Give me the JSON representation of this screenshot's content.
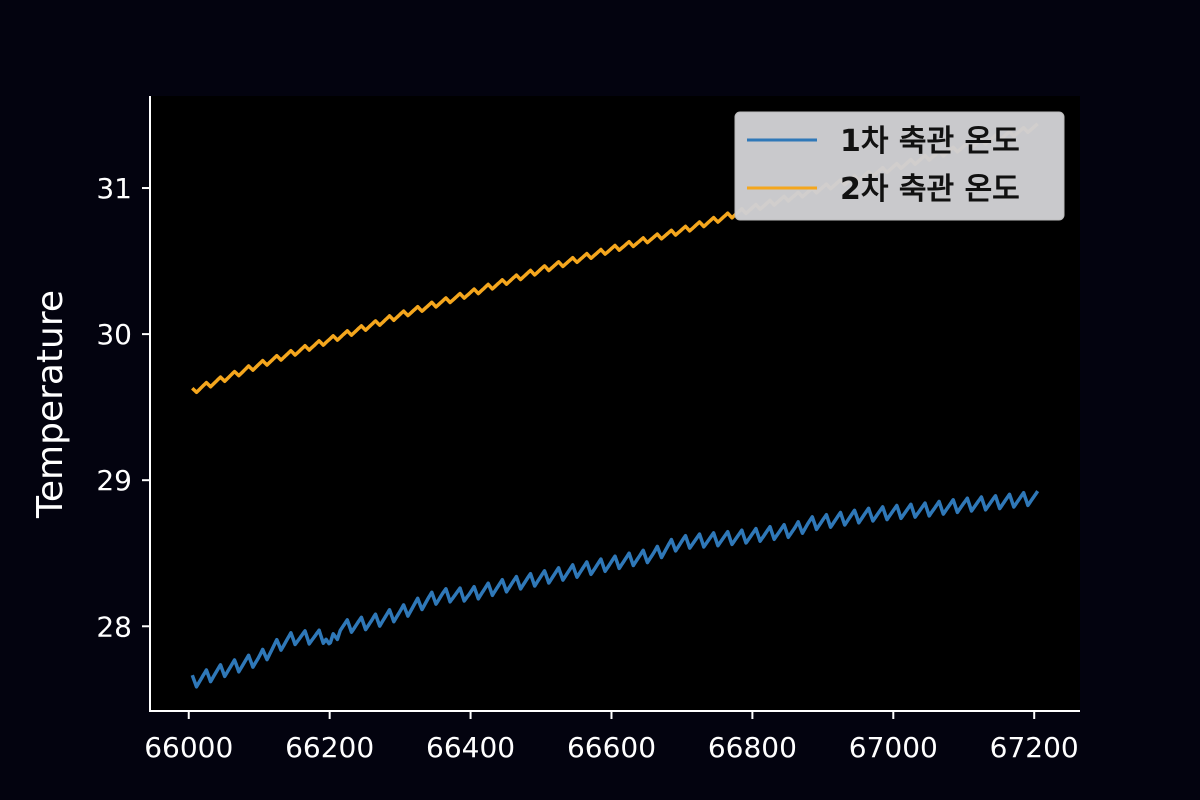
{
  "chart_data": {
    "type": "line",
    "title": "",
    "xlabel": "",
    "ylabel": "Temperature",
    "xlim": [
      65945,
      67265
    ],
    "ylim": [
      27.42,
      31.63
    ],
    "xticks": [
      66000,
      66200,
      66400,
      66600,
      66800,
      67000,
      67200
    ],
    "yticks": [
      28,
      29,
      30,
      31
    ],
    "grid": false,
    "legend_position": "top-right",
    "colors": {
      "background": "#03030f",
      "axes": "#ffffff",
      "legend_bg": "#cfcfd3"
    },
    "series": [
      {
        "name": "1차 축관 온도",
        "color": "#2f78b8",
        "oscillation": 0.09,
        "period": 20,
        "x": [
          66005,
          66050,
          66100,
          66130,
          66150,
          66195,
          66200,
          66215,
          66260,
          66300,
          66340,
          66360,
          66400,
          66450,
          66500,
          66550,
          66600,
          66660,
          66690,
          66710,
          66760,
          66800,
          66860,
          66880,
          66920,
          66960,
          67000,
          67050,
          67100,
          67150,
          67205
        ],
        "y": [
          27.62,
          27.7,
          27.78,
          27.88,
          27.92,
          27.93,
          27.86,
          27.99,
          28.03,
          28.09,
          28.18,
          28.21,
          28.22,
          28.28,
          28.33,
          28.38,
          28.43,
          28.49,
          28.56,
          28.58,
          28.6,
          28.62,
          28.66,
          28.7,
          28.73,
          28.76,
          28.78,
          28.8,
          28.83,
          28.85,
          28.88
        ]
      },
      {
        "name": "2차 축관 온도",
        "color": "#f4a61d",
        "oscillation": 0.04,
        "period": 20,
        "x": [
          66005,
          66100,
          66200,
          66300,
          66400,
          66500,
          66600,
          66700,
          66800,
          66900,
          67000,
          67100,
          67205
        ],
        "y": [
          29.61,
          29.79,
          29.96,
          30.13,
          30.28,
          30.44,
          30.58,
          30.71,
          30.86,
          31.0,
          31.14,
          31.28,
          31.42
        ]
      }
    ]
  }
}
